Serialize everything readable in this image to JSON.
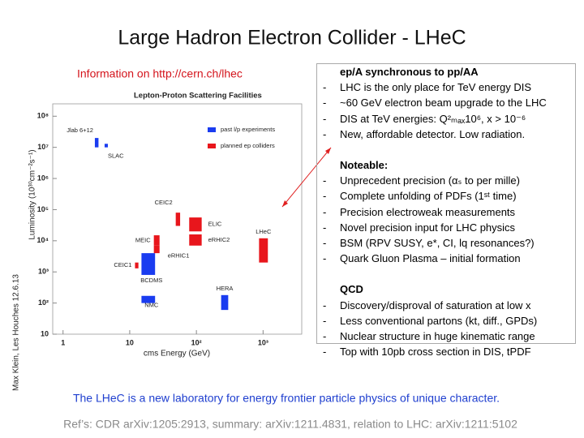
{
  "title": "Large Hadron Electron Collider - LHeC",
  "link": "Information on http://cern.ch/lhec",
  "chart_data": {
    "type": "range_box",
    "title": "Lepton-Proton Scattering Facilities",
    "x_label": "cms Energy (GeV)",
    "y_label": "Luminosity (10³⁰cm⁻²s⁻¹)",
    "log_x": true,
    "log_y": true,
    "xlim": [
      0.7,
      3800
    ],
    "ylim": [
      10,
      250000000
    ],
    "xticks": [
      1,
      10,
      {
        "value": 100,
        "label": "10²"
      },
      {
        "value": 1000,
        "label": "10³"
      }
    ],
    "yticks": [
      10,
      {
        "value": 100,
        "label": "10²"
      },
      {
        "value": 1000,
        "label": "10³"
      },
      {
        "value": 10000,
        "label": "10⁴"
      },
      {
        "value": 100000,
        "label": "10⁵"
      },
      {
        "value": 1000000,
        "label": "10⁶"
      },
      {
        "value": 10000000,
        "label": "10⁷"
      },
      {
        "value": 100000000,
        "label": "10⁸"
      }
    ],
    "series": [
      {
        "name": "past l/p experiments",
        "color": "#1a3cf0",
        "labels": [
          "Jlab 6+12",
          "SLAC",
          "BCDMS",
          "NMC",
          "HERA"
        ],
        "x": [
          [
            3,
            3.4
          ],
          [
            4.2,
            4.7
          ],
          [
            15,
            24
          ],
          [
            15,
            24
          ],
          [
            235,
            300
          ]
        ],
        "y": [
          [
            10000000,
            20000000
          ],
          [
            10000000,
            13000000
          ],
          [
            800,
            4000
          ],
          [
            100,
            170
          ],
          [
            60,
            180
          ]
        ]
      },
      {
        "name": "planned ep colliders",
        "color": "#e8161c",
        "labels": [
          "CEIC2",
          "ELIC",
          "MEIC",
          "eRHIC2",
          "eRHIC1",
          "LHeC",
          "CEIC1"
        ],
        "x": [
          [
            49,
            57
          ],
          [
            78,
            120
          ],
          [
            23,
            28
          ],
          [
            78,
            120
          ],
          [
            23,
            28
          ],
          [
            870,
            1180
          ],
          [
            12,
            13.5
          ]
        ],
        "y": [
          [
            30000,
            80000
          ],
          [
            20000,
            56000
          ],
          [
            7000,
            15000
          ],
          [
            7000,
            16000
          ],
          [
            4000,
            7000
          ],
          [
            2000,
            12000
          ],
          [
            1300,
            2000
          ]
        ]
      }
    ]
  },
  "notes": {
    "sections": [
      {
        "heading": "ep/A synchronous to pp/AA",
        "items": [
          "LHC is the only place for TeV energy DIS",
          "~60 GeV electron beam upgrade to the LHC",
          "DIS at TeV energies: Q²ₘₐₓ10⁶, x > 10⁻⁶",
          "New, affordable detector. Low radiation."
        ]
      },
      {
        "heading": "Noteable:",
        "items": [
          "Unprecedent precision (αₛ to per mille)",
          "Complete unfolding of PDFs (1ˢᵗ time)",
          "Precision electroweak measurements",
          "Novel precision input for LHC physics",
          "BSM (RPV SUSY, e*, CI, lq resonances?)",
          "Quark Gluon Plasma – initial formation"
        ]
      },
      {
        "heading": "QCD",
        "items": [
          "Discovery/disproval of saturation at low x",
          "Less conventional partons (kt, diff., GPDs)",
          "Nuclear structure in huge kinematic range",
          "Top with 10pb cross section in DIS, tPDF"
        ]
      }
    ]
  },
  "tagline": "The LHeC is a new laboratory for energy frontier particle physics of unique character.",
  "references": "Ref’s: CDR arXiv:1205:2913, summary: arXiv:1211.4831, relation to LHC: arXiv:1211:5102",
  "side_note": "Max Klein, Les Houches 12.6.13"
}
